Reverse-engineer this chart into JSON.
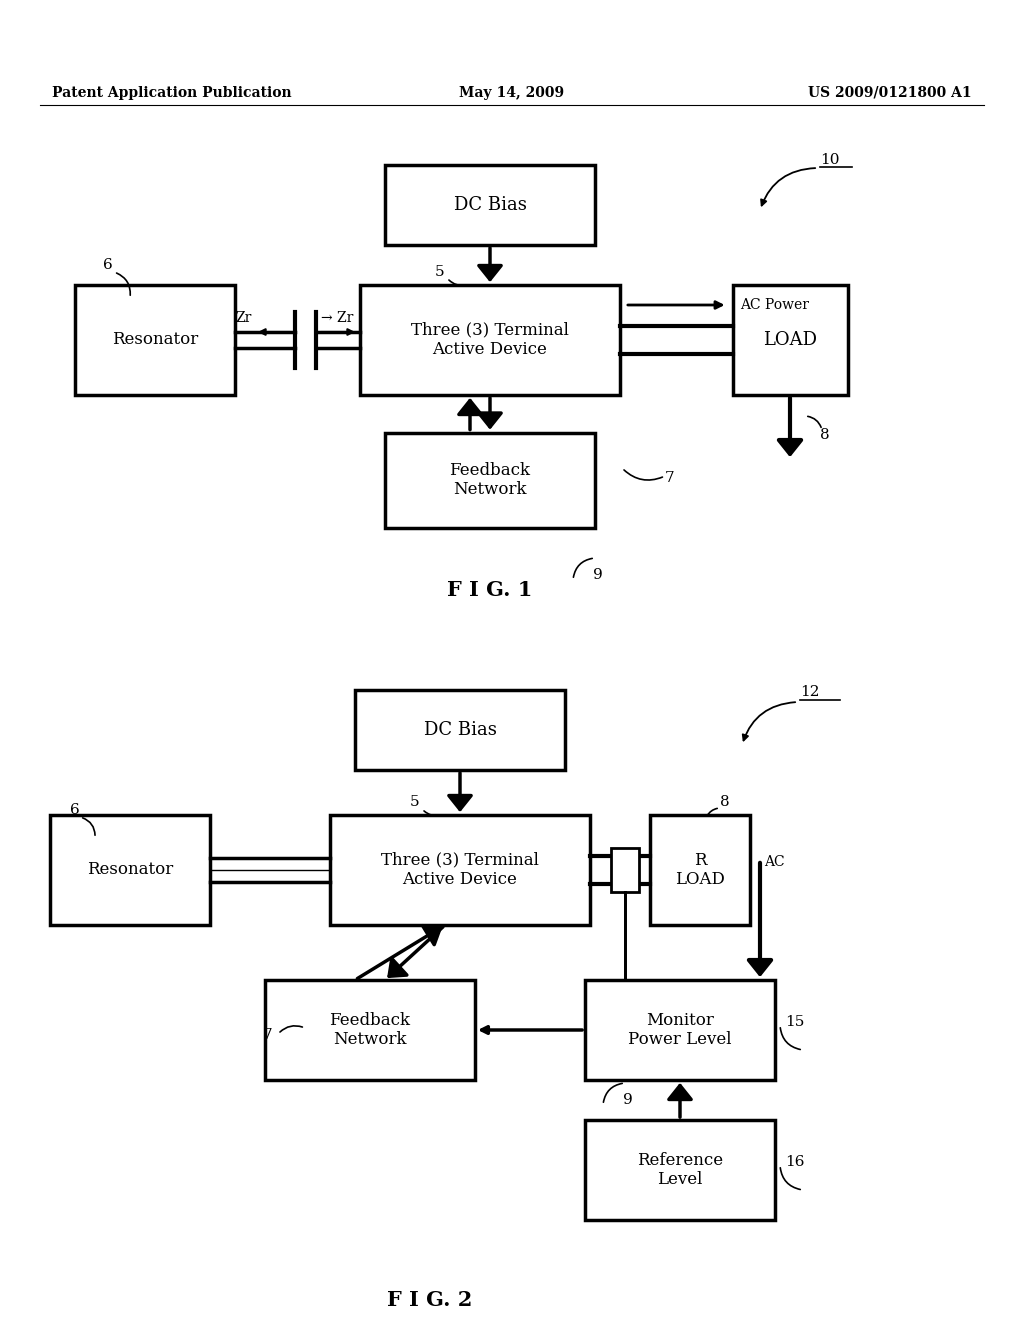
{
  "bg_color": "#ffffff",
  "header_left": "Patent Application Publication",
  "header_center": "May 14, 2009",
  "header_right": "US 2009/0121800 A1",
  "fig1_label": "F I G. 1",
  "fig2_label": "F I G. 2"
}
